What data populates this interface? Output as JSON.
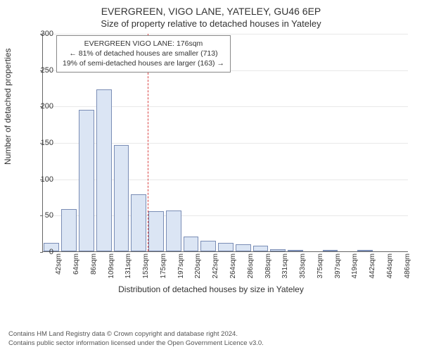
{
  "titles": {
    "main": "EVERGREEN, VIGO LANE, YATELEY, GU46 6EP",
    "sub": "Size of property relative to detached houses in Yateley"
  },
  "axes": {
    "y_label": "Number of detached properties",
    "x_label": "Distribution of detached houses by size in Yateley"
  },
  "chart": {
    "type": "histogram",
    "ylim": [
      0,
      300
    ],
    "ytick_step": 50,
    "yticks": [
      0,
      50,
      100,
      150,
      200,
      250,
      300
    ],
    "bar_fill": "#dbe5f4",
    "bar_border": "#7a8db5",
    "grid_color": "#e8e8e8",
    "axis_color": "#666666",
    "background": "#ffffff",
    "categories": [
      "42sqm",
      "64sqm",
      "86sqm",
      "109sqm",
      "131sqm",
      "153sqm",
      "175sqm",
      "197sqm",
      "220sqm",
      "242sqm",
      "264sqm",
      "286sqm",
      "308sqm",
      "331sqm",
      "353sqm",
      "375sqm",
      "397sqm",
      "419sqm",
      "442sqm",
      "464sqm",
      "486sqm"
    ],
    "values": [
      12,
      58,
      195,
      223,
      146,
      78,
      55,
      56,
      20,
      15,
      12,
      10,
      8,
      3,
      2,
      0,
      1,
      0,
      1,
      0,
      0
    ],
    "bar_width_ratio": 0.88
  },
  "reference": {
    "x_category_index": 6,
    "line_color": "#d94040"
  },
  "annotation": {
    "line1": "EVERGREEN VIGO LANE: 176sqm",
    "line2": "← 81% of detached houses are smaller (713)",
    "line3": "19% of semi-detached houses are larger (163) →"
  },
  "footer": {
    "line1": "Contains HM Land Registry data © Crown copyright and database right 2024.",
    "line2": "Contains public sector information licensed under the Open Government Licence v3.0."
  }
}
